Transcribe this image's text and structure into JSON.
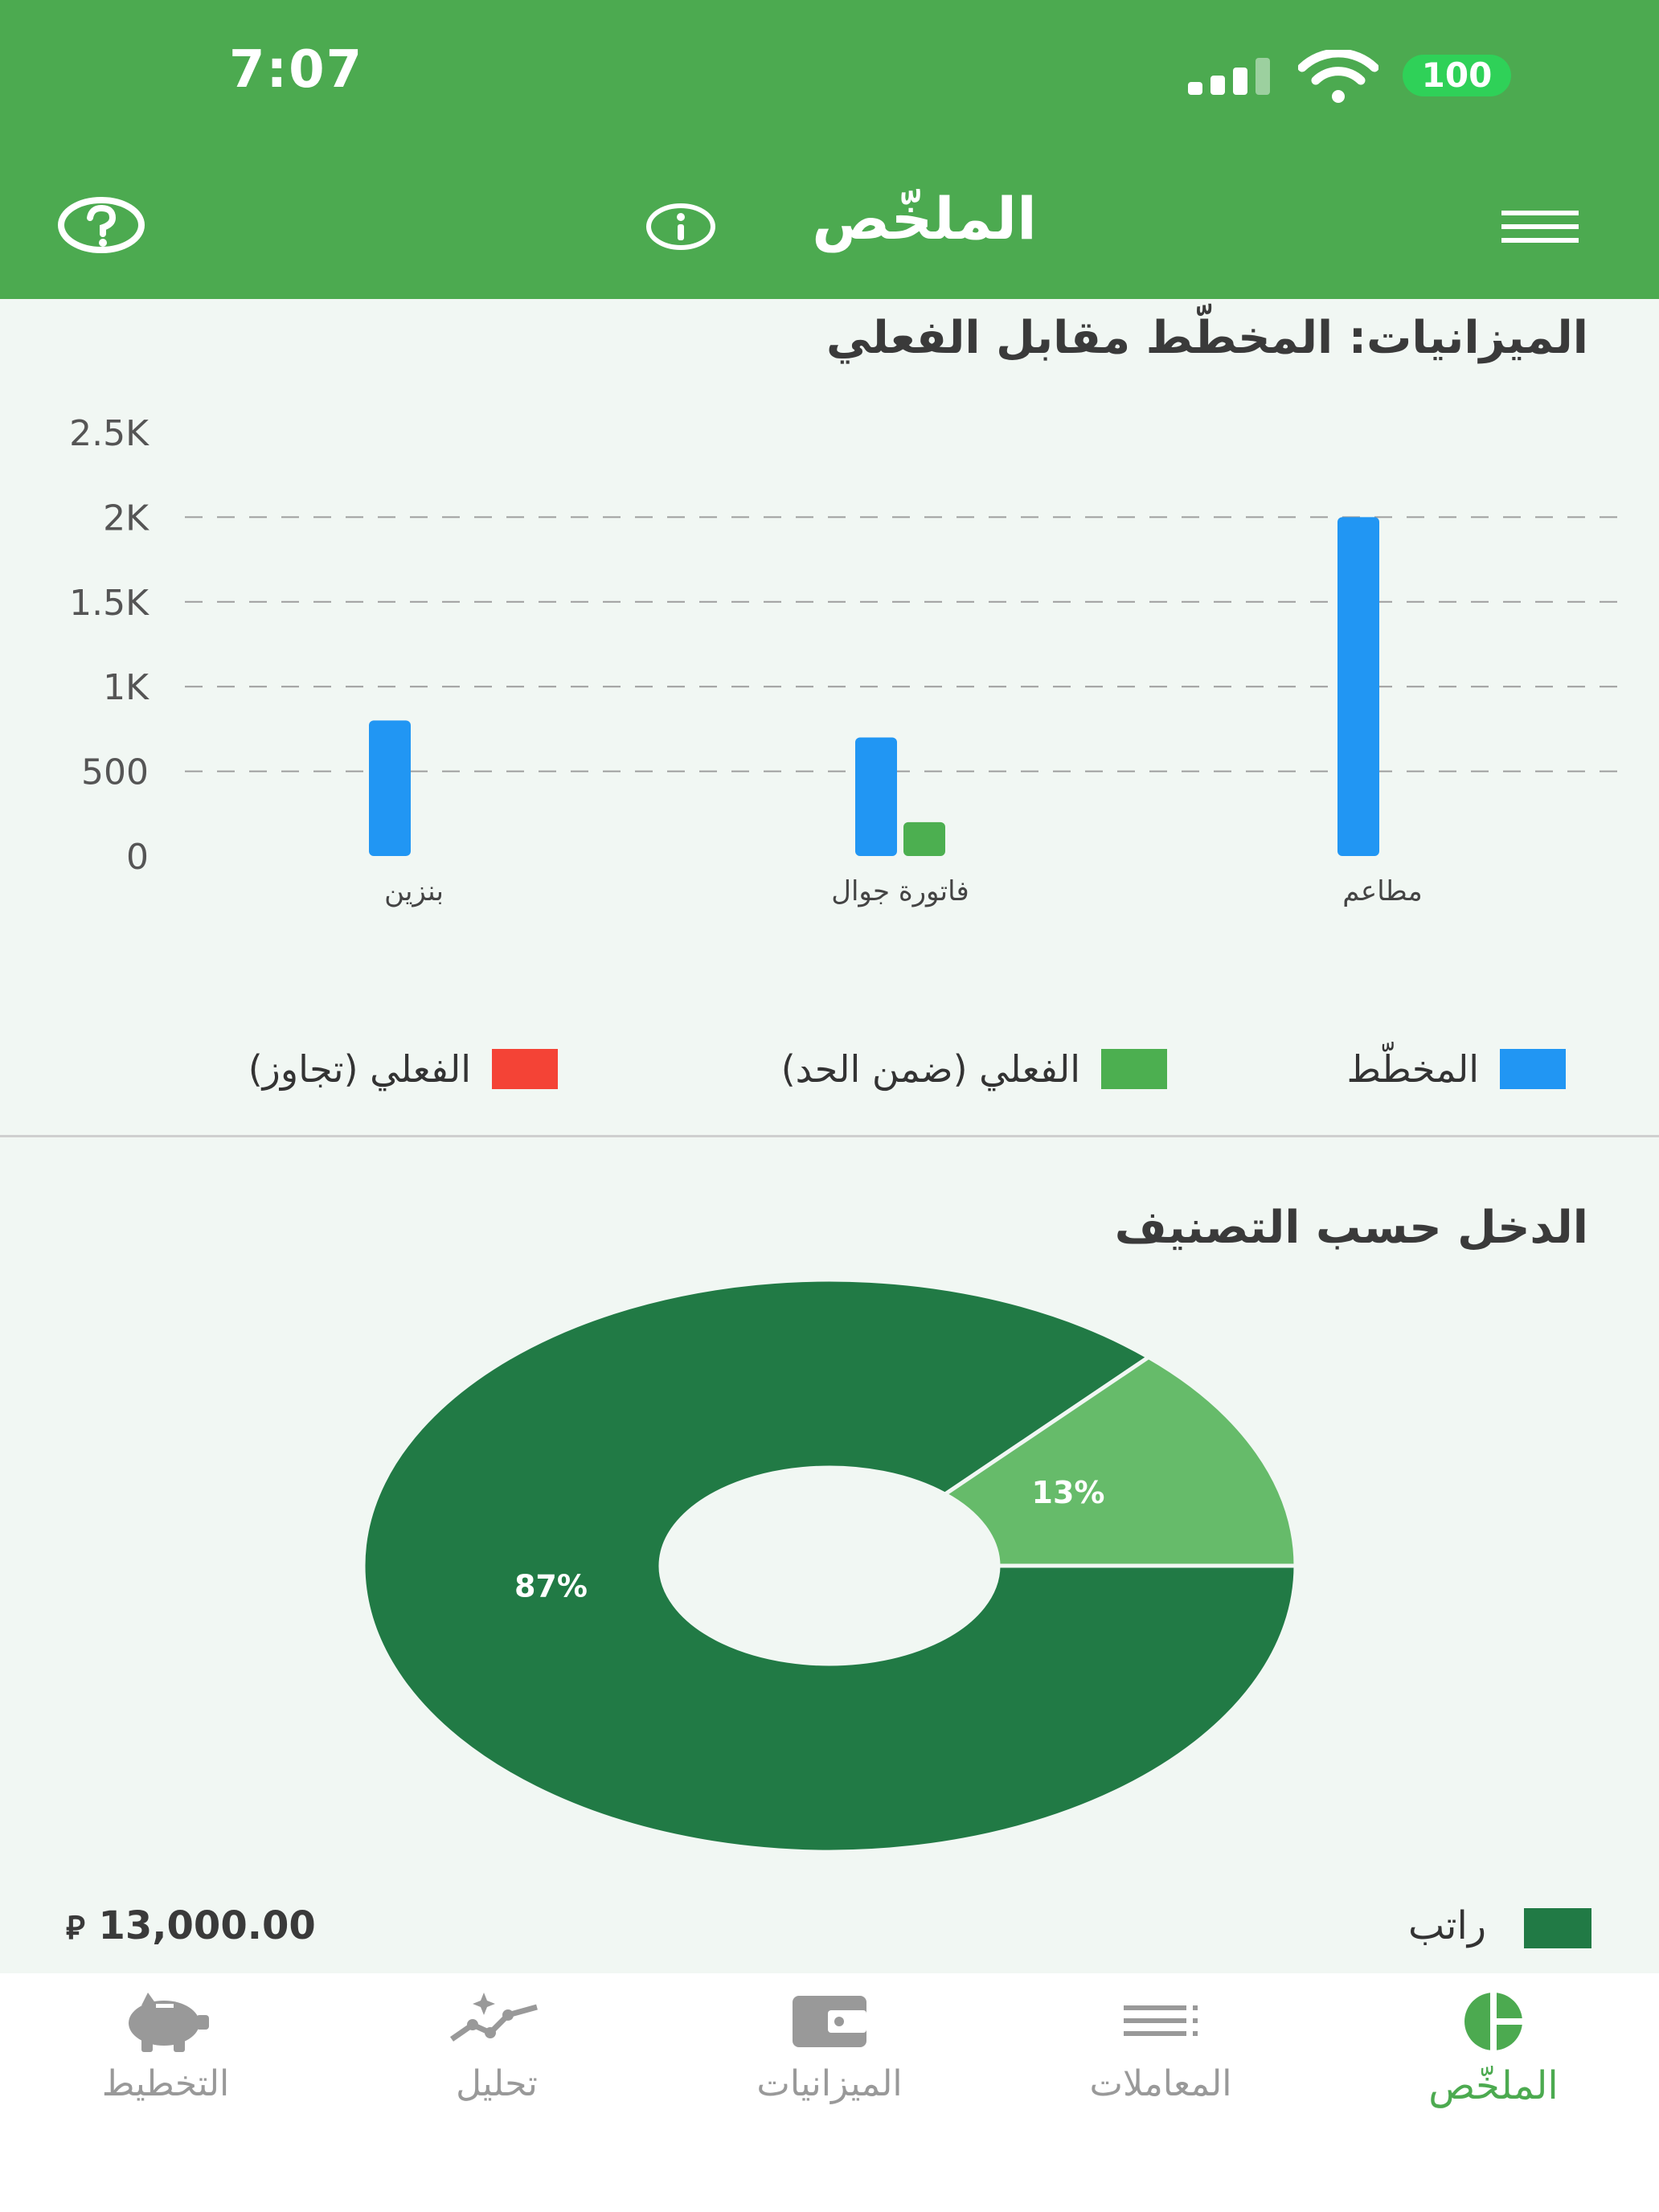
{
  "status_bar": {
    "time": "7:07",
    "battery": "100"
  },
  "header": {
    "title": "الملخّص",
    "help_icon": "help-circle-icon",
    "info_icon": "info-icon",
    "menu_icon": "menu-icon"
  },
  "colors": {
    "header_bg": "#4caa50",
    "planned": "#2196f3",
    "actual_within": "#4caf50",
    "actual_over": "#f44336",
    "salary": "#217a45",
    "other_income": "#66bb6a",
    "tab_active": "#4caa50",
    "tab_inactive": "#999999"
  },
  "budget_section": {
    "title": "الميزانيات: المخطّط مقابل الفعلي",
    "legend": [
      {
        "label": "المخطّط",
        "color": "#2196f3"
      },
      {
        "label": "الفعلي (ضمن الحد)",
        "color": "#4caf50"
      },
      {
        "label": "الفعلي (تجاوز)",
        "color": "#f44336"
      }
    ]
  },
  "income_section": {
    "title": "الدخل حسب التصنيف",
    "legend_item": {
      "label": "راتب",
      "amount": "13,000.00",
      "currency_icon": "riyal-icon"
    }
  },
  "chart_data": [
    {
      "type": "bar",
      "title": "الميزانيات: المخطّط مقابل الفعلي",
      "categories": [
        "بنزين",
        "فاتورة جوال",
        "مطاعم"
      ],
      "series": [
        {
          "name": "المخطّط",
          "values": [
            800,
            700,
            2000
          ]
        },
        {
          "name": "الفعلي (ضمن الحد)",
          "values": [
            0,
            200,
            0
          ]
        },
        {
          "name": "الفعلي (تجاوز)",
          "values": [
            0,
            0,
            0
          ]
        }
      ],
      "yticks": [
        "0",
        "500",
        "1K",
        "1.5K",
        "2K",
        "2.5K"
      ],
      "ylim": [
        0,
        2500
      ],
      "grid": true,
      "legend": "bottom"
    },
    {
      "type": "pie",
      "title": "الدخل حسب التصنيف",
      "slices": [
        {
          "label": "87%",
          "value": 87,
          "color": "#217a45"
        },
        {
          "label": "13%",
          "value": 13,
          "color": "#66bb6a"
        }
      ],
      "donut": true
    }
  ],
  "tabs": [
    {
      "label": "الملخّص",
      "icon": "pie-chart-icon",
      "active": true
    },
    {
      "label": "المعاملات",
      "icon": "list-icon",
      "active": false
    },
    {
      "label": "الميزانيات",
      "icon": "wallet-icon",
      "active": false
    },
    {
      "label": "تحليل",
      "icon": "trend-line-icon",
      "active": false
    },
    {
      "label": "التخطيط",
      "icon": "piggy-bank-icon",
      "active": false
    }
  ]
}
